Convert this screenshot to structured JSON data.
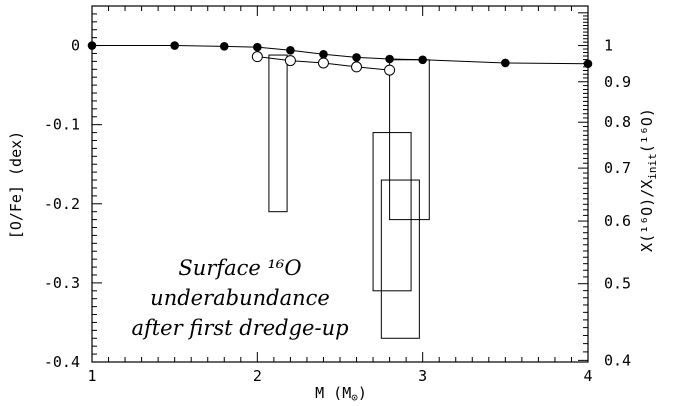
{
  "chart_data": {
    "type": "scatter",
    "xlabel": "M (M",
    "xlabel_sub": "⊙",
    "xlabel_close": ")",
    "ylabel": "[O/Fe] (dex)",
    "ylabel_right": "X(¹⁶O)/X",
    "ylabel_right_sub": "init",
    "ylabel_right_close": "(¹⁶O)",
    "xlim": [
      1,
      4
    ],
    "ylim": [
      -0.4,
      0.05
    ],
    "x_ticks": [
      1,
      2,
      3,
      4
    ],
    "y_ticks": [
      0,
      -0.1,
      -0.2,
      -0.3,
      -0.4
    ],
    "x_tick_labels": [
      "1",
      "2",
      "3",
      "4"
    ],
    "y_tick_labels": [
      "0",
      "-0.1",
      "-0.2",
      "-0.3",
      "-0.4"
    ],
    "right_ticks": [
      1,
      0.9,
      0.8,
      0.7,
      0.6,
      0.5,
      0.4
    ],
    "right_tick_labels": [
      "1",
      "0.9",
      "0.8",
      "0.7",
      "0.6",
      "0.5",
      "0.4"
    ],
    "series": [
      {
        "marker": "filled-circle",
        "x": [
          1.0,
          1.5,
          1.8,
          2.0,
          2.2,
          2.4,
          2.6,
          2.8,
          3.0,
          3.5,
          4.0
        ],
        "y": [
          0.0,
          0.0,
          -0.001,
          -0.002,
          -0.006,
          -0.011,
          -0.015,
          -0.017,
          -0.018,
          -0.022,
          -0.023
        ]
      },
      {
        "marker": "open-circle",
        "x": [
          2.0,
          2.2,
          2.4,
          2.6,
          2.8
        ],
        "y": [
          -0.014,
          -0.019,
          -0.022,
          -0.027,
          -0.031
        ]
      }
    ],
    "boxes": [
      {
        "x": [
          2.07,
          2.18
        ],
        "y": [
          -0.012,
          -0.21
        ]
      },
      {
        "x": [
          2.7,
          2.93
        ],
        "y": [
          -0.11,
          -0.31
        ]
      },
      {
        "x": [
          2.75,
          2.98
        ],
        "y": [
          -0.17,
          -0.37
        ]
      },
      {
        "x": [
          2.8,
          3.04
        ],
        "y": [
          -0.018,
          -0.22
        ]
      }
    ],
    "annotation": [
      "Surface ¹⁶O",
      "underabundance",
      "after first dredge-up"
    ],
    "grid": false
  }
}
